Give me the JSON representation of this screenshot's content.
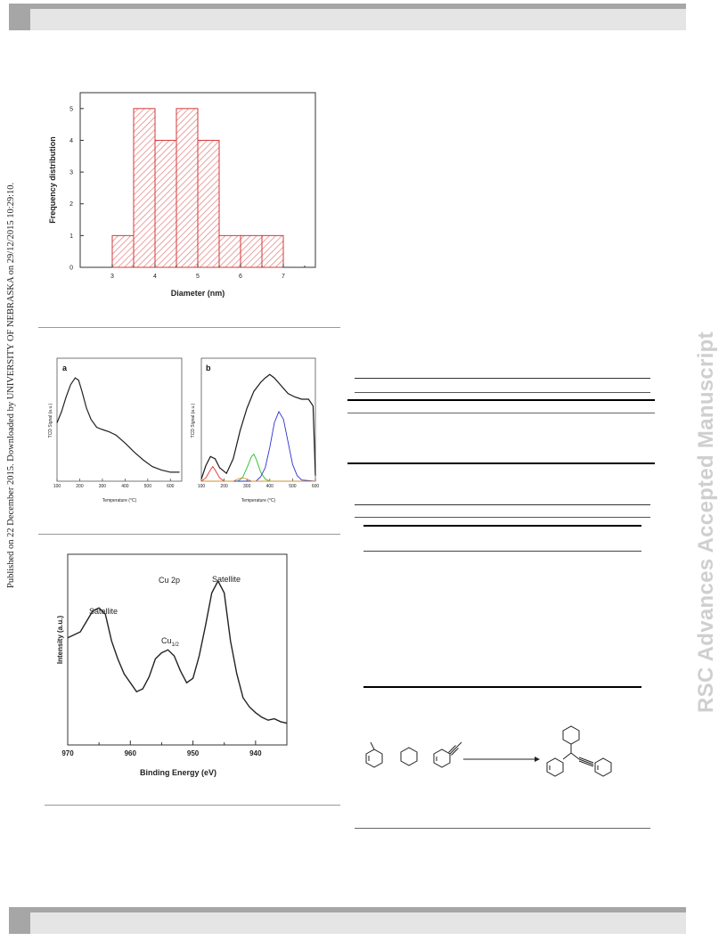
{
  "side_margin": {
    "published_note": "Published on 22 December 2015. Downloaded by UNIVERSITY OF NEBRASKA on 29/12/2015 10:29:10.",
    "journal_watermark": "RSC Advances Accepted Manuscript"
  },
  "figures": {
    "histogram": {
      "xlabel": "Diameter (nm)",
      "ylabel": "Frequency distribution",
      "x_ticks": [
        "3",
        "4",
        "5",
        "6",
        "7"
      ],
      "y_ticks": [
        "0",
        "1",
        "2",
        "3",
        "4",
        "5"
      ]
    },
    "tpr": {
      "panel_a": {
        "label": "a",
        "ylabel": "TCD Signal (a.u.)",
        "xlabel": "Temperature (°C)",
        "x_ticks": [
          "100",
          "200",
          "300",
          "400",
          "500",
          "600"
        ]
      },
      "panel_b": {
        "label": "b",
        "ylabel": "TCD Signal (a.u.)",
        "xlabel": "Temperature (°C)",
        "x_ticks": [
          "100",
          "200",
          "300",
          "400",
          "500",
          "600"
        ]
      }
    },
    "xps": {
      "title": "Cu 2p",
      "peak_left": "Satellite",
      "peak_mid": "Cu",
      "peak_mid_sub": "1/2",
      "peak_right": "Satellite",
      "xlabel": "Binding Energy (eV)",
      "ylabel": "Intensity (a.u.)",
      "x_ticks": [
        "970",
        "960",
        "950",
        "940"
      ]
    }
  },
  "chart_data": [
    {
      "type": "bar",
      "xlabel": "Diameter (nm)",
      "ylabel": "Frequency distribution",
      "bins": [
        [
          3.0,
          3.5
        ],
        [
          3.5,
          4.0
        ],
        [
          4.0,
          4.5
        ],
        [
          4.5,
          5.0
        ],
        [
          5.0,
          5.5
        ],
        [
          5.5,
          6.0
        ],
        [
          6.0,
          6.5
        ],
        [
          6.5,
          7.0
        ]
      ],
      "values": [
        1,
        5,
        4,
        5,
        4,
        1,
        1,
        1
      ],
      "xlim": [
        2.25,
        7.75
      ],
      "ylim": [
        0,
        5.5
      ],
      "grid": false,
      "colors": {
        "bar_edge": "#d43a3a",
        "bar_hatch": "#e58a8a"
      }
    },
    {
      "type": "line",
      "panel": "a",
      "xlabel": "Temperature (°C)",
      "ylabel": "TCD Signal (a.u.)",
      "xlim": [
        100,
        650
      ],
      "series": [
        {
          "x": [
            100,
            120,
            140,
            160,
            180,
            195,
            210,
            230,
            250,
            275,
            300,
            330,
            360,
            400,
            440,
            480,
            520,
            560,
            600,
            640
          ],
          "y": [
            0.52,
            0.62,
            0.75,
            0.86,
            0.92,
            0.9,
            0.8,
            0.65,
            0.55,
            0.48,
            0.46,
            0.44,
            0.41,
            0.34,
            0.26,
            0.19,
            0.13,
            0.1,
            0.08,
            0.08
          ]
        }
      ]
    },
    {
      "type": "line",
      "panel": "b",
      "xlabel": "Temperature (°C)",
      "ylabel": "TCD Signal (a.u.)",
      "xlim": [
        100,
        600
      ],
      "series": [
        {
          "color": "#1a1a1a",
          "x": [
            100,
            120,
            140,
            160,
            180,
            210,
            240,
            270,
            300,
            330,
            360,
            380,
            400,
            420,
            450,
            480,
            510,
            540,
            570,
            590,
            600
          ],
          "y": [
            0.02,
            0.14,
            0.22,
            0.2,
            0.12,
            0.07,
            0.2,
            0.45,
            0.65,
            0.8,
            0.88,
            0.92,
            0.95,
            0.92,
            0.85,
            0.78,
            0.75,
            0.73,
            0.73,
            0.67,
            0.05
          ]
        },
        {
          "color": "#e03030",
          "x": [
            100,
            120,
            140,
            150,
            160,
            180,
            200,
            240,
            600
          ],
          "y": [
            0.0,
            0.03,
            0.1,
            0.13,
            0.1,
            0.03,
            0.0,
            0.0,
            0.0
          ]
        },
        {
          "color": "#26c026",
          "x": [
            100,
            260,
            280,
            300,
            320,
            330,
            340,
            360,
            380,
            400,
            600
          ],
          "y": [
            0.0,
            0.0,
            0.03,
            0.12,
            0.22,
            0.24,
            0.2,
            0.08,
            0.02,
            0.0,
            0.0
          ]
        },
        {
          "color": "#3030d0",
          "x": [
            100,
            340,
            360,
            380,
            400,
            420,
            440,
            460,
            480,
            500,
            520,
            540,
            600
          ],
          "y": [
            0.0,
            0.0,
            0.04,
            0.12,
            0.3,
            0.52,
            0.62,
            0.55,
            0.35,
            0.15,
            0.05,
            0.01,
            0.0
          ]
        },
        {
          "color": "#d09030",
          "x": [
            100,
            240,
            260,
            280,
            300,
            320,
            600
          ],
          "y": [
            0.0,
            0.0,
            0.02,
            0.03,
            0.02,
            0.0,
            0.0
          ]
        }
      ]
    },
    {
      "type": "line",
      "xlabel": "Binding Energy (eV)",
      "ylabel": "Intensity (a.u.)",
      "xlim": [
        970,
        935
      ],
      "series": [
        {
          "x": [
            970,
            968,
            966,
            965,
            964,
            963,
            962,
            961,
            960,
            959,
            958,
            957,
            956,
            955,
            954,
            953,
            952,
            951,
            950,
            949,
            948,
            947,
            946,
            945,
            944,
            943,
            942,
            941,
            940,
            939,
            938,
            937,
            936,
            935
          ],
          "y": [
            0.62,
            0.66,
            0.8,
            0.82,
            0.78,
            0.6,
            0.48,
            0.38,
            0.32,
            0.26,
            0.28,
            0.36,
            0.48,
            0.52,
            0.54,
            0.5,
            0.4,
            0.32,
            0.35,
            0.5,
            0.7,
            0.92,
            1.0,
            0.92,
            0.6,
            0.38,
            0.22,
            0.16,
            0.12,
            0.09,
            0.07,
            0.08,
            0.06,
            0.05
          ]
        }
      ]
    }
  ]
}
